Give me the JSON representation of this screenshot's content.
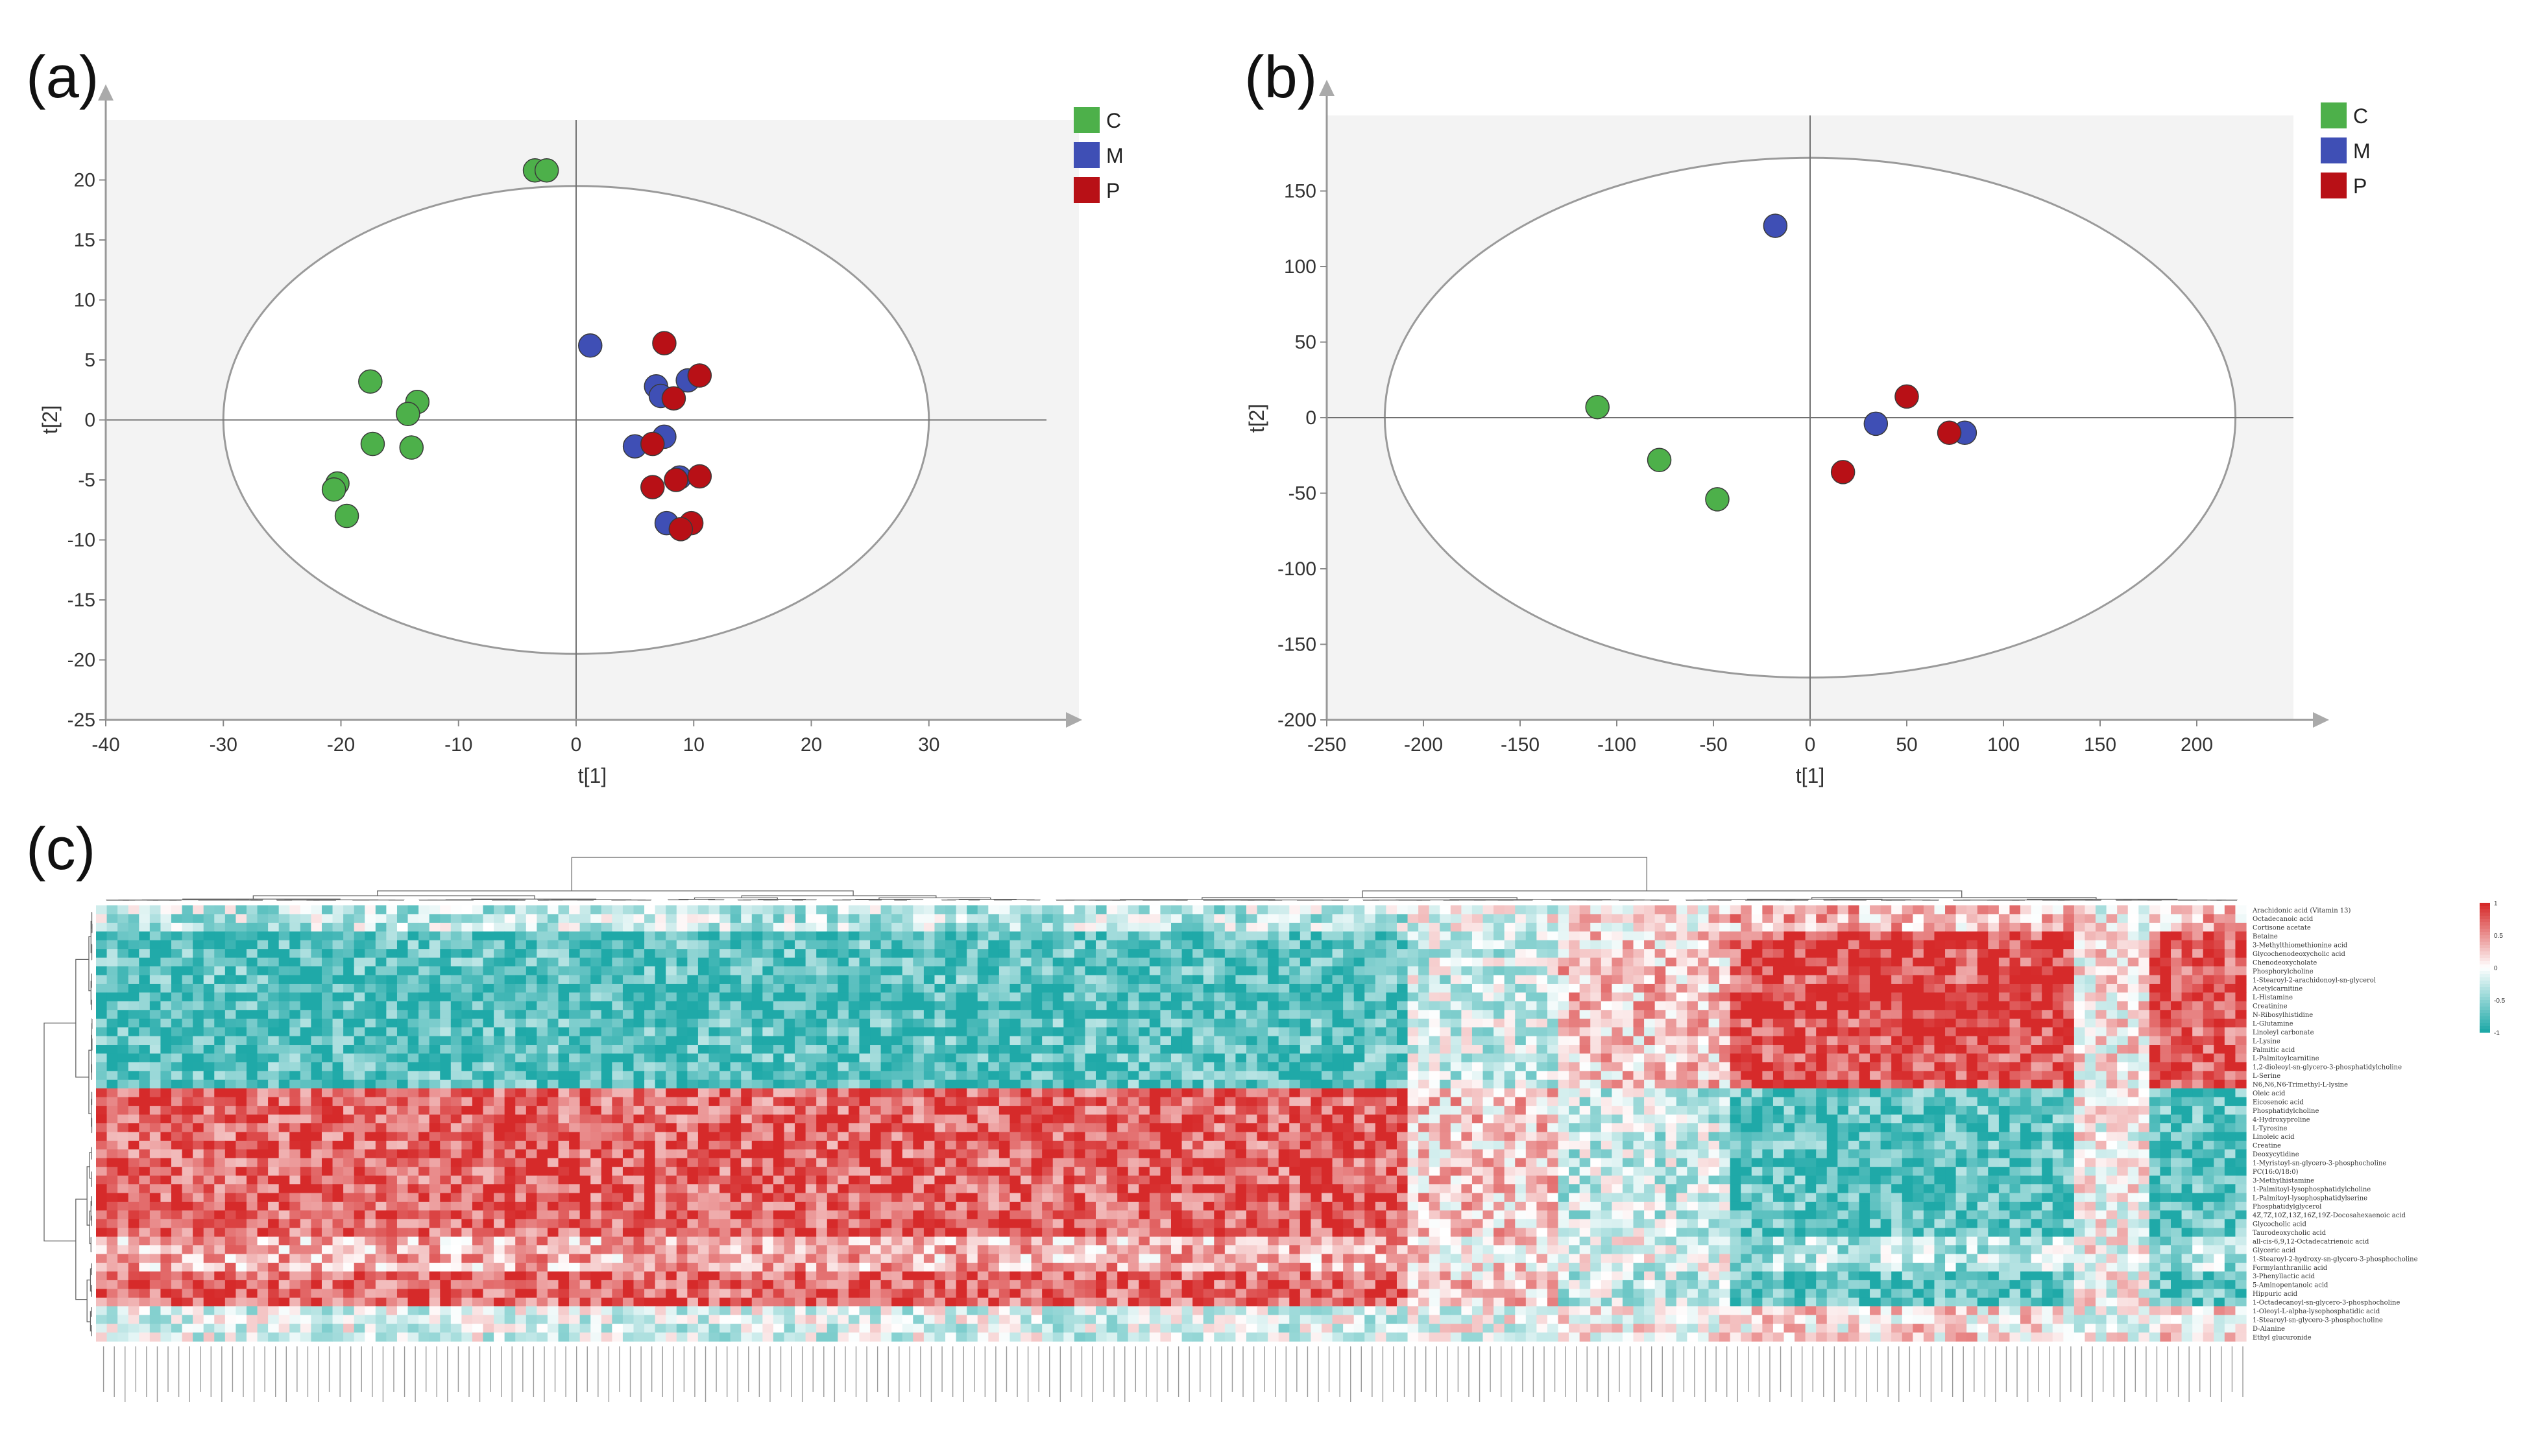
{
  "colors": {
    "C": "#4db04a",
    "M": "#3f4fb5",
    "P": "#b81016",
    "plot_bg": "#f3f3f3",
    "heat_high": "#d62a2a",
    "heat_mid": "#ffffff",
    "heat_low": "#1fa9a8"
  },
  "chart_data": [
    {
      "panel": "(a)",
      "type": "scatter",
      "xlabel": "t[1]",
      "ylabel": "t[2]",
      "xlim": [
        -40,
        40
      ],
      "ylim": [
        -25,
        25
      ],
      "xticks": [
        -40,
        -30,
        -20,
        -10,
        0,
        10,
        20,
        30
      ],
      "yticks": [
        20,
        15,
        10,
        5,
        0,
        -5,
        -10,
        -15,
        -20,
        -25
      ],
      "ellipse": {
        "rx": 30,
        "ry": 19.5
      },
      "legend": {
        "position": "top-right",
        "entries": [
          "C",
          "M",
          "P"
        ]
      },
      "series": [
        {
          "name": "C",
          "points": [
            [
              -3.5,
              20.8
            ],
            [
              -2.5,
              20.8
            ],
            [
              -17.5,
              3.2
            ],
            [
              -13.5,
              1.5
            ],
            [
              -14.3,
              0.5
            ],
            [
              -17.3,
              -2.0
            ],
            [
              -14,
              -2.3
            ],
            [
              -20.3,
              -5.3
            ],
            [
              -20.6,
              -5.8
            ],
            [
              -19.5,
              -8.0
            ]
          ]
        },
        {
          "name": "M",
          "points": [
            [
              1.2,
              6.2
            ],
            [
              6.8,
              2.8
            ],
            [
              7.2,
              2.0
            ],
            [
              9.5,
              3.3
            ],
            [
              5,
              -2.2
            ],
            [
              7.5,
              -1.4
            ],
            [
              8.8,
              -4.8
            ],
            [
              7.7,
              -8.6
            ]
          ]
        },
        {
          "name": "P",
          "points": [
            [
              7.5,
              6.4
            ],
            [
              10.5,
              3.7
            ],
            [
              8.3,
              1.8
            ],
            [
              6.5,
              -2.0
            ],
            [
              6.5,
              -5.6
            ],
            [
              8.5,
              -5.0
            ],
            [
              10.5,
              -4.7
            ],
            [
              9.8,
              -8.6
            ],
            [
              8.9,
              -9.1
            ]
          ]
        }
      ]
    },
    {
      "panel": "(b)",
      "type": "scatter",
      "xlabel": "t[1]",
      "ylabel": "t[2]",
      "xlim": [
        -250,
        250
      ],
      "ylim": [
        -200,
        200
      ],
      "xticks": [
        -250,
        -200,
        -150,
        -100,
        -50,
        0,
        50,
        100,
        150,
        200
      ],
      "yticks": [
        150,
        100,
        50,
        0,
        -50,
        -100,
        -150,
        -200
      ],
      "ellipse": {
        "rx": 220,
        "ry": 172
      },
      "legend": {
        "position": "top-right",
        "entries": [
          "C",
          "M",
          "P"
        ]
      },
      "series": [
        {
          "name": "C",
          "points": [
            [
              -110,
              7
            ],
            [
              -78,
              -28
            ],
            [
              -48,
              -54
            ]
          ]
        },
        {
          "name": "M",
          "points": [
            [
              -18,
              127
            ],
            [
              34,
              -4
            ],
            [
              80,
              -10
            ]
          ]
        },
        {
          "name": "P",
          "points": [
            [
              17,
              -36
            ],
            [
              50,
              14
            ],
            [
              72,
              -10
            ]
          ]
        }
      ]
    },
    {
      "panel": "(c)",
      "type": "heatmap",
      "colorbar_ticks": [
        "1",
        "0.5",
        "0",
        "-0.5",
        "-1"
      ],
      "rows": [
        "Arachidonic acid (Vitamin 13)",
        "Octadecanoic acid",
        "Cortisone acetate",
        "Betaine",
        "3-Methylthiomethionine acid",
        "Glycochenodeoxycholic acid",
        "Chenodeoxycholate",
        "Phosphorylcholine",
        "1-Stearoyl-2-arachidonoyl-sn-glycerol",
        "Acetylcarnitine",
        "L-Histamine",
        "Creatinine",
        "N-Ribosylhistidine",
        "L-Glutamine",
        "Linoleyl carbonate",
        "L-Lysine",
        "Palmitic acid",
        "L-Palmitoylcarnitine",
        "1,2-dioleoyl-sn-glycero-3-phosphatidylcholine",
        "L-Serine",
        "N6,N6,N6-Trimethyl-L-lysine",
        "Oleic acid",
        "Eicosenoic acid",
        "Phosphatidylcholine",
        "4-Hydroxyproline",
        "L-Tyrosine",
        "Linoleic acid",
        "Creatine",
        "Deoxycytidine",
        "1-Myristoyl-sn-glycero-3-phosphocholine",
        "PC(16:0/18:0)",
        "3-Methylhistamine",
        "1-Palmitoyl-lysophosphatidylcholine",
        "L-Palmitoyl-lysophosphatidylserine",
        "Phosphatidylglycerol",
        "4Z,7Z,10Z,13Z,16Z,19Z-Docosahexaenoic acid",
        "Glycocholic acid",
        "Taurodeoxycholic acid",
        "all-cis-6,9,12-Octadecatrienoic acid",
        "Glyceric acid",
        "1-Stearoyl-2-hydroxy-sn-glycero-3-phosphocholine",
        "Formylanthranilic acid",
        "3-Phenyllactic acid",
        "5-Aminopentanoic acid",
        "Hippuric acid",
        "1-Octadecanoyl-sn-glycero-3-phosphocholine",
        "1-Oleoyl-L-alpha-lysophosphatidic acid",
        "1-Stearoyl-sn-glycero-3-phosphocholine",
        "D-Alanine",
        "Ethyl glucuronide"
      ]
    }
  ]
}
